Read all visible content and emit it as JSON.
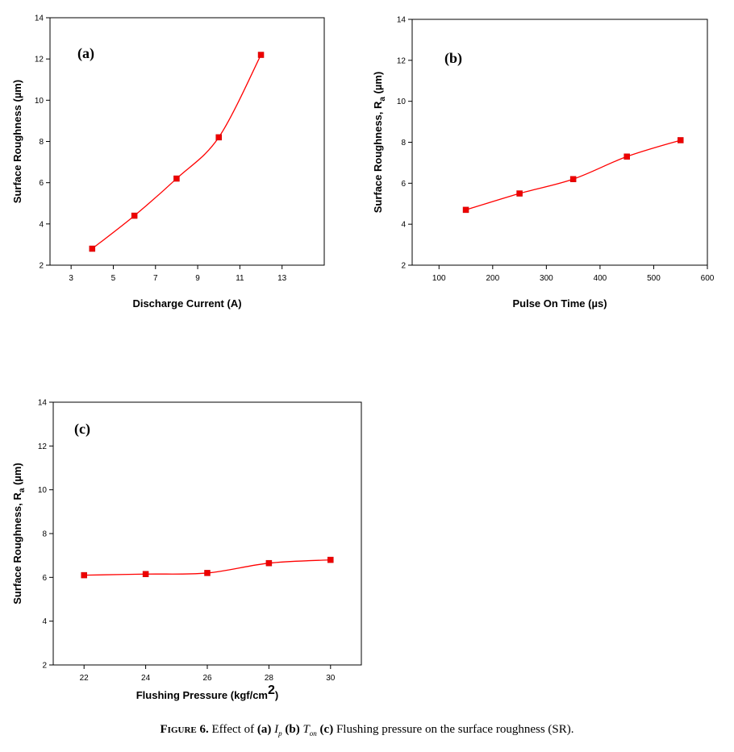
{
  "chart_data": [
    {
      "type": "line",
      "panel_label": "(a)",
      "xlabel": "Discharge Current (A)",
      "ylabel": "Surface Roughness (µm)",
      "xlim": [
        2,
        15
      ],
      "ylim": [
        2,
        14
      ],
      "xticks": [
        3,
        5,
        7,
        9,
        11,
        13
      ],
      "yticks": [
        2,
        4,
        6,
        8,
        10,
        12,
        14
      ],
      "grid": false,
      "colors": {
        "line": "#ff0000",
        "marker": "#ee0000"
      },
      "series": [
        {
          "x": [
            4,
            6,
            8,
            10,
            12
          ],
          "y": [
            2.8,
            4.4,
            6.2,
            8.2,
            12.2
          ]
        }
      ]
    },
    {
      "type": "line",
      "panel_label": "(b)",
      "xlabel": "Pulse On Time (µs)",
      "ylabel": "Surface Roughness, R",
      "ylabel_sub": "a",
      "ylabel_unit": "(µm)",
      "xlim": [
        50,
        600
      ],
      "ylim": [
        2,
        14
      ],
      "xticks": [
        100,
        200,
        300,
        400,
        500,
        600
      ],
      "yticks": [
        2,
        4,
        6,
        8,
        10,
        12,
        14
      ],
      "grid": false,
      "colors": {
        "line": "#ff0000",
        "marker": "#ee0000"
      },
      "series": [
        {
          "x": [
            150,
            250,
            350,
            450,
            550
          ],
          "y": [
            4.7,
            5.5,
            6.2,
            7.3,
            8.1
          ]
        }
      ]
    },
    {
      "type": "line",
      "panel_label": "(c)",
      "xlabel": "Flushing Pressure (kgf/cm",
      "xlabel_sup": "2",
      "xlabel_end": ")",
      "ylabel": "Surface Roughness, R",
      "ylabel_sub": "a",
      "ylabel_unit": "(µm)",
      "xlim": [
        21,
        31
      ],
      "ylim": [
        2,
        14
      ],
      "xticks": [
        22,
        24,
        26,
        28,
        30
      ],
      "yticks": [
        2,
        4,
        6,
        8,
        10,
        12,
        14
      ],
      "grid": false,
      "colors": {
        "line": "#ff0000",
        "marker": "#ee0000"
      },
      "series": [
        {
          "x": [
            22,
            24,
            26,
            28,
            30
          ],
          "y": [
            6.1,
            6.15,
            6.2,
            6.65,
            6.8
          ]
        }
      ]
    }
  ],
  "caption": {
    "figure_number": "Figure 6.",
    "prefix": "Effect of",
    "a": "(a)",
    "ip_symbol": "I",
    "ip_sub": "p",
    "b": "(b)",
    "ton_symbol": "T",
    "ton_sub": "on",
    "c": "(c)",
    "suffix": "Flushing pressure on the surface roughness (SR)."
  }
}
